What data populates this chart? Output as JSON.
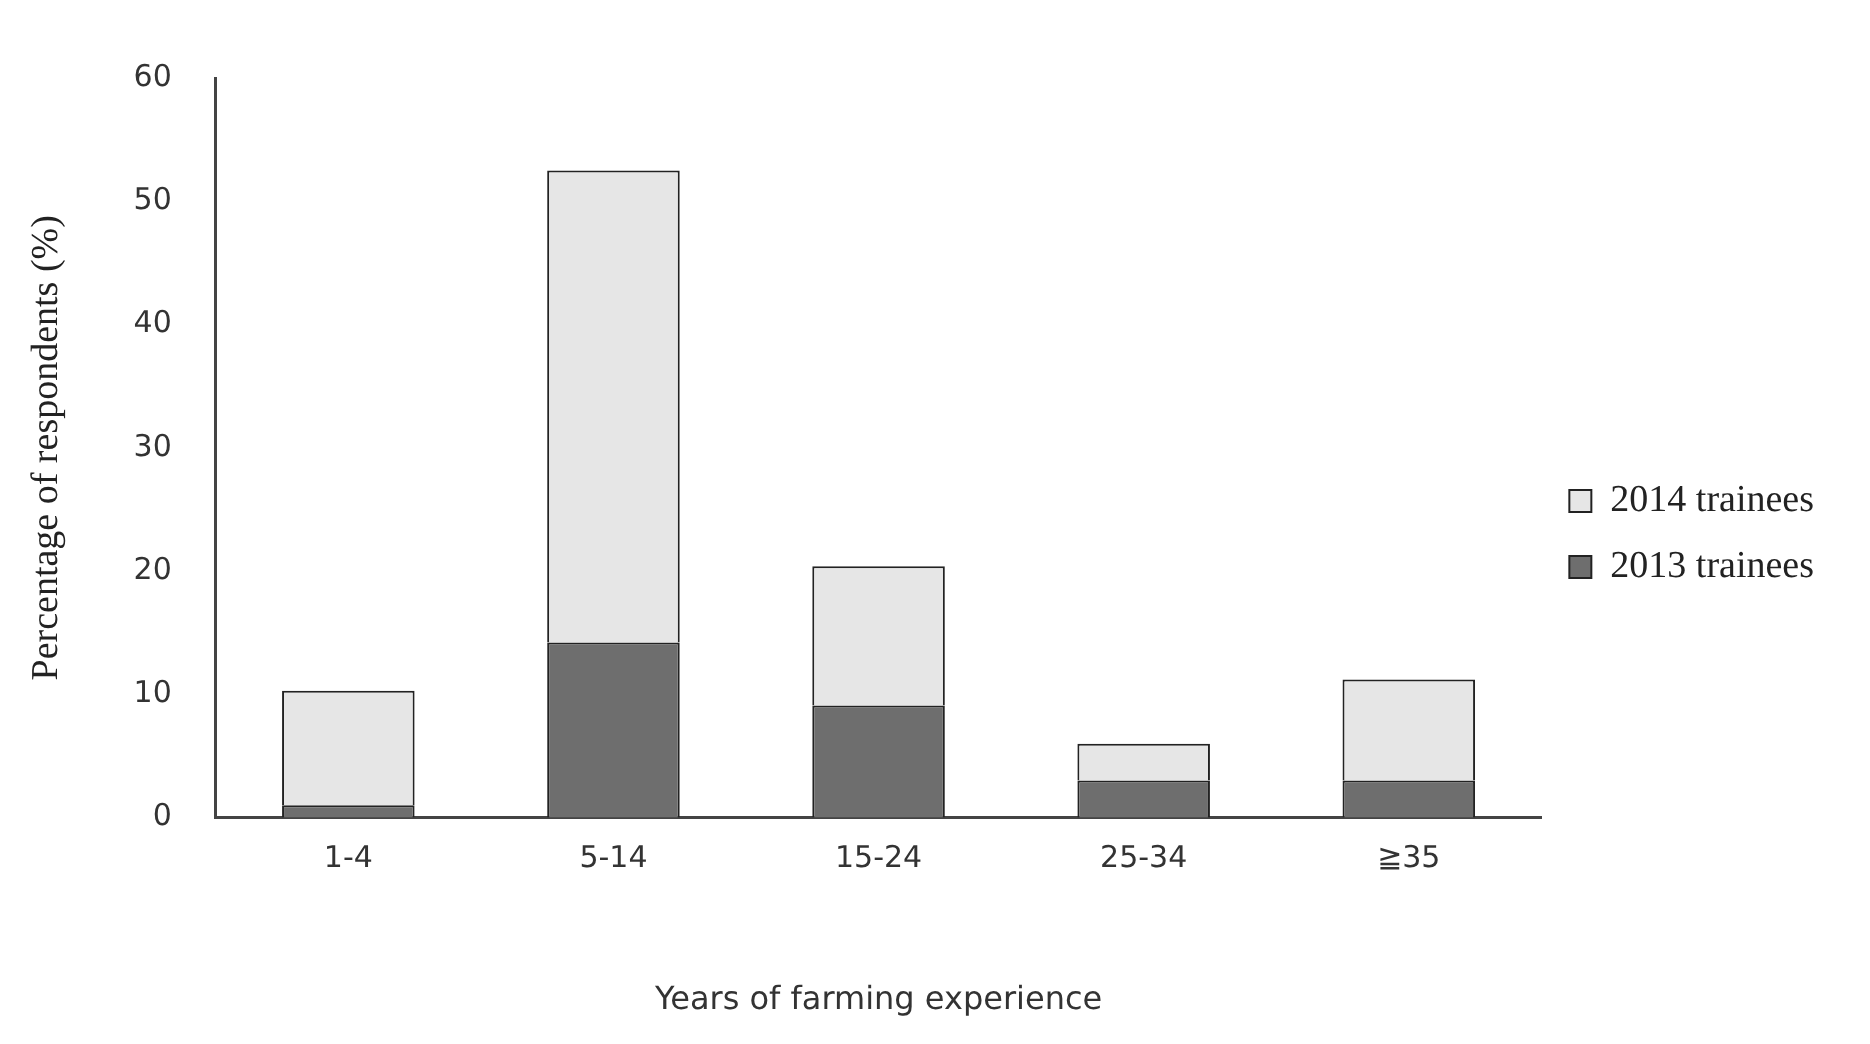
{
  "chart_data": {
    "type": "bar",
    "stacked": true,
    "xlabel": "Years of farming experience",
    "ylabel": "Percentage of respondents (%)",
    "categories": [
      "1-4",
      "5-14",
      "15-24",
      "25-34",
      "≧35"
    ],
    "series": [
      {
        "name": "2013 trainees",
        "color": "#6e6e6e",
        "values": [
          1,
          14.2,
          9.1,
          3,
          3
        ]
      },
      {
        "name": "2014 trainees",
        "color": "#e6e6e6",
        "values": [
          9.3,
          38.3,
          11.3,
          3,
          8.2
        ]
      }
    ],
    "ylim": [
      0,
      60
    ],
    "yticks": [
      0,
      10,
      20,
      30,
      40,
      50,
      60
    ],
    "grid": false,
    "legend": "right"
  }
}
